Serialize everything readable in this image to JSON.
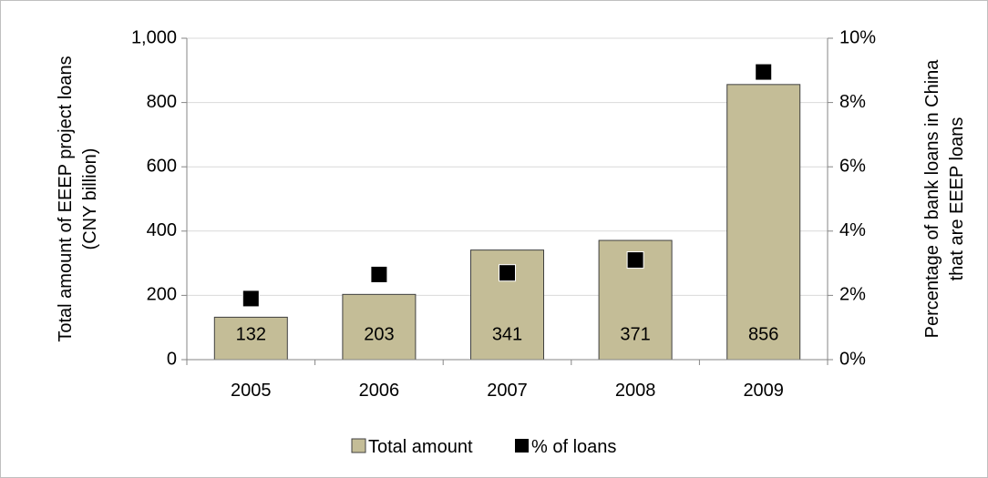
{
  "chart_data": {
    "type": "bar",
    "categories": [
      "2005",
      "2006",
      "2007",
      "2008",
      "2009"
    ],
    "series": [
      {
        "name": "Total amount",
        "type": "bar",
        "axis": "left",
        "color": "#c4bd97",
        "values": [
          132,
          203,
          341,
          371,
          856
        ],
        "data_labels": [
          "132",
          "203",
          "341",
          "371",
          "856"
        ]
      },
      {
        "name": "% of loans",
        "type": "marker",
        "axis": "right",
        "color": "#000000",
        "values": [
          1.9,
          2.65,
          2.7,
          3.1,
          8.95
        ]
      }
    ],
    "y_left": {
      "label_lines": [
        "Total amount of EEEP project loans",
        "(CNY billion)"
      ],
      "ylim": [
        0,
        1000
      ],
      "ticks": [
        {
          "value": 0,
          "label": "0"
        },
        {
          "value": 200,
          "label": "200"
        },
        {
          "value": 400,
          "label": "400"
        },
        {
          "value": 600,
          "label": "600"
        },
        {
          "value": 800,
          "label": "800"
        },
        {
          "value": 1000,
          "label": "1,000"
        }
      ]
    },
    "y_right": {
      "label_lines": [
        "Percentage of bank loans in China",
        "that are EEEP loans"
      ],
      "ylim": [
        0,
        10
      ],
      "ticks": [
        {
          "value": 0,
          "label": "0%"
        },
        {
          "value": 2,
          "label": "2%"
        },
        {
          "value": 4,
          "label": "4%"
        },
        {
          "value": 6,
          "label": "6%"
        },
        {
          "value": 8,
          "label": "8%"
        },
        {
          "value": 10,
          "label": "10%"
        }
      ]
    },
    "grid": true,
    "legend": {
      "position": "bottom",
      "entries": [
        {
          "label": "Total amount",
          "color": "#c4bd97"
        },
        {
          "label": "% of loans",
          "color": "#000000"
        }
      ]
    }
  }
}
